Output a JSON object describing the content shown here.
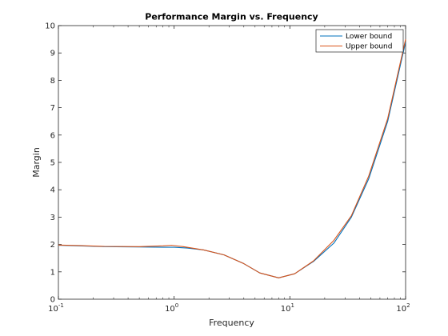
{
  "chart_data": {
    "type": "line",
    "title": "Performance Margin vs. Frequency",
    "xlabel": "Frequency",
    "ylabel": "Margin",
    "xscale": "log",
    "xlim": [
      0.1,
      100
    ],
    "ylim": [
      0,
      10
    ],
    "yticks": [
      "0",
      "1",
      "2",
      "3",
      "4",
      "5",
      "6",
      "7",
      "8",
      "9",
      "10"
    ],
    "xticks": [
      {
        "value": 0.1,
        "base": "10",
        "exp": "-1"
      },
      {
        "value": 1,
        "base": "10",
        "exp": "0"
      },
      {
        "value": 10,
        "base": "10",
        "exp": "1"
      },
      {
        "value": 100,
        "base": "10",
        "exp": "2"
      }
    ],
    "grid": false,
    "legend_position": "top-right",
    "series": [
      {
        "name": "Lower bound",
        "color": "#0072BD",
        "points": [
          [
            0.1,
            1.97
          ],
          [
            0.15,
            1.95
          ],
          [
            0.25,
            1.92
          ],
          [
            0.5,
            1.91
          ],
          [
            0.8,
            1.9
          ],
          [
            1.0,
            1.9
          ],
          [
            1.3,
            1.87
          ],
          [
            1.8,
            1.8
          ],
          [
            2.7,
            1.62
          ],
          [
            4.0,
            1.3
          ],
          [
            5.5,
            0.96
          ],
          [
            8.0,
            0.78
          ],
          [
            11.0,
            0.93
          ],
          [
            16.0,
            1.38
          ],
          [
            24.0,
            2.05
          ],
          [
            34.0,
            3.0
          ],
          [
            48.0,
            4.4
          ],
          [
            70.0,
            6.5
          ],
          [
            100.0,
            9.4
          ]
        ]
      },
      {
        "name": "Upper bound",
        "color": "#D95319",
        "points": [
          [
            0.1,
            1.98
          ],
          [
            0.15,
            1.96
          ],
          [
            0.25,
            1.93
          ],
          [
            0.5,
            1.92
          ],
          [
            0.8,
            1.95
          ],
          [
            0.95,
            1.97
          ],
          [
            1.2,
            1.92
          ],
          [
            1.8,
            1.8
          ],
          [
            2.7,
            1.62
          ],
          [
            4.0,
            1.3
          ],
          [
            5.5,
            0.96
          ],
          [
            8.0,
            0.78
          ],
          [
            11.0,
            0.93
          ],
          [
            16.0,
            1.4
          ],
          [
            24.0,
            2.15
          ],
          [
            34.0,
            3.05
          ],
          [
            48.0,
            4.5
          ],
          [
            70.0,
            6.6
          ],
          [
            100.0,
            9.5
          ]
        ]
      }
    ]
  }
}
